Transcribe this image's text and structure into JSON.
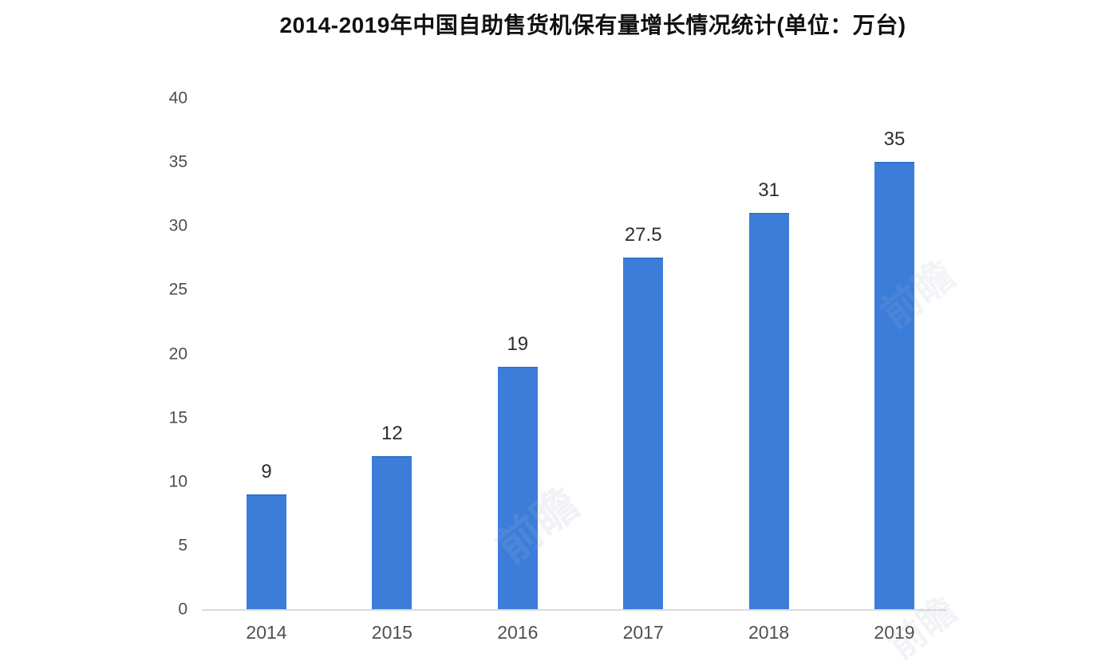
{
  "page": {
    "background": "#ffffff"
  },
  "chart_data": {
    "type": "bar",
    "title": "2014-2019年中国自助售货机保有量增长情况统计(单位：万台)",
    "categories": [
      "2014",
      "2015",
      "2016",
      "2017",
      "2018",
      "2019"
    ],
    "values": [
      9,
      12,
      19,
      27.5,
      31,
      35
    ],
    "value_labels": [
      "9",
      "12",
      "19",
      "27.5",
      "31",
      "35"
    ],
    "unit": "万台",
    "xlabel": "",
    "ylabel": "",
    "ylim": [
      0,
      40
    ],
    "yticks": [
      0,
      5,
      10,
      15,
      20,
      25,
      30,
      35,
      40
    ],
    "grid": false,
    "legend": false,
    "bar_color": "#3c7dda",
    "axis_line_color": "#dcdcdf",
    "title_color": "#111111",
    "tick_label_color": "#4d4d4d",
    "value_label_color": "#2d2d2d"
  },
  "watermarks": [
    {
      "text": "前瞻"
    },
    {
      "text": "前瞻"
    },
    {
      "text": "前瞻"
    }
  ]
}
